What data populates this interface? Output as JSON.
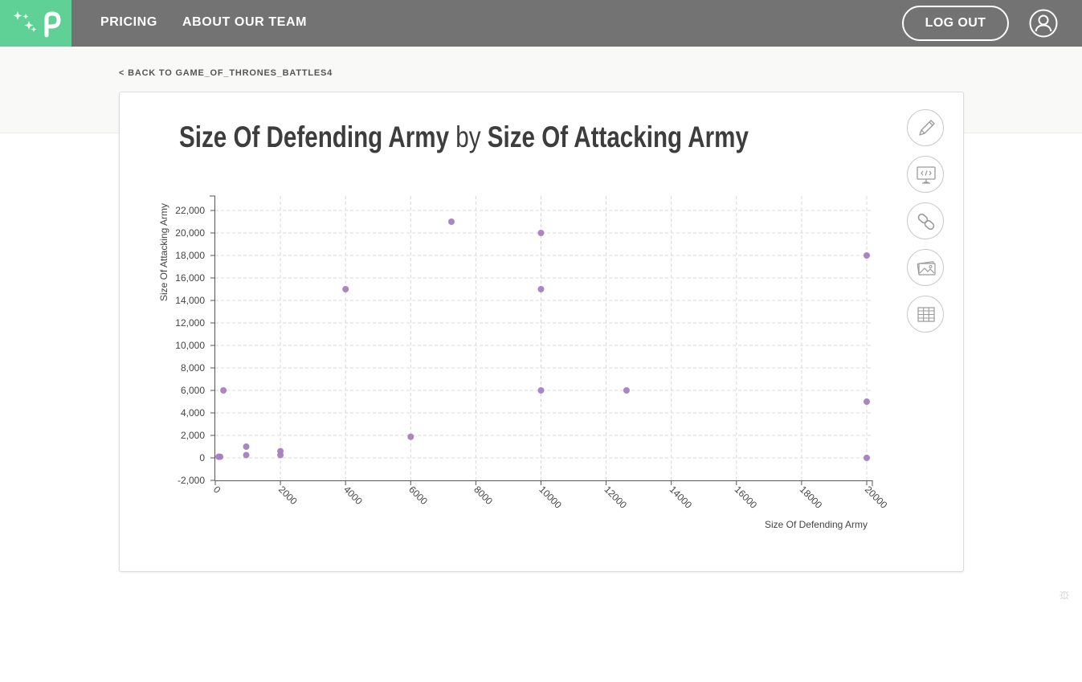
{
  "nav": {
    "pricing": "PRICING",
    "about": "ABOUT OUR TEAM",
    "logout": "LOG OUT"
  },
  "back_link": "< BACK TO GAME_OF_THRONES_BATTLES4",
  "title": {
    "part1": "Size Of Defending Army",
    "by": "by",
    "part2": "Size Of Attacking Army"
  },
  "sidebar_icons": [
    "pencil-icon",
    "embed-code-icon",
    "link-icon",
    "image-icon",
    "table-icon"
  ],
  "colors": {
    "nav_bg": "#737373",
    "logo_bg": "#5fd196",
    "point": "#a57fbf"
  },
  "chart_data": {
    "type": "scatter",
    "xlabel": "Size Of Defending Army",
    "ylabel": "Size Of Attacking Army",
    "xlim": [
      0,
      20000
    ],
    "ylim": [
      -2000,
      23000
    ],
    "xticks": [
      0,
      2000,
      4000,
      6000,
      8000,
      10000,
      12000,
      14000,
      16000,
      18000,
      20000
    ],
    "xtick_labels": [
      "0",
      "2000",
      "4000",
      "6000",
      "8000",
      "10000",
      "12000",
      "14000",
      "16000",
      "18000",
      "20000"
    ],
    "yticks": [
      -2000,
      0,
      2000,
      4000,
      6000,
      8000,
      10000,
      12000,
      14000,
      16000,
      18000,
      20000,
      22000
    ],
    "ytick_labels": [
      "-2,000",
      "0",
      "2,000",
      "4,000",
      "6,000",
      "8,000",
      "10,000",
      "12,000",
      "14,000",
      "16,000",
      "18,000",
      "20,000",
      "22,000"
    ],
    "grid": true,
    "points": [
      {
        "x": 100,
        "y": 100
      },
      {
        "x": 150,
        "y": 100
      },
      {
        "x": 250,
        "y": 6000
      },
      {
        "x": 950,
        "y": 1000
      },
      {
        "x": 950,
        "y": 250
      },
      {
        "x": 2000,
        "y": 600
      },
      {
        "x": 2000,
        "y": 250
      },
      {
        "x": 4000,
        "y": 15000
      },
      {
        "x": 6000,
        "y": 1875
      },
      {
        "x": 7250,
        "y": 21000
      },
      {
        "x": 10000,
        "y": 20000
      },
      {
        "x": 10000,
        "y": 15000
      },
      {
        "x": 10000,
        "y": 6000
      },
      {
        "x": 12625,
        "y": 6000
      },
      {
        "x": 20000,
        "y": 18000
      },
      {
        "x": 20000,
        "y": 5000
      },
      {
        "x": 20000,
        "y": 0
      }
    ]
  }
}
